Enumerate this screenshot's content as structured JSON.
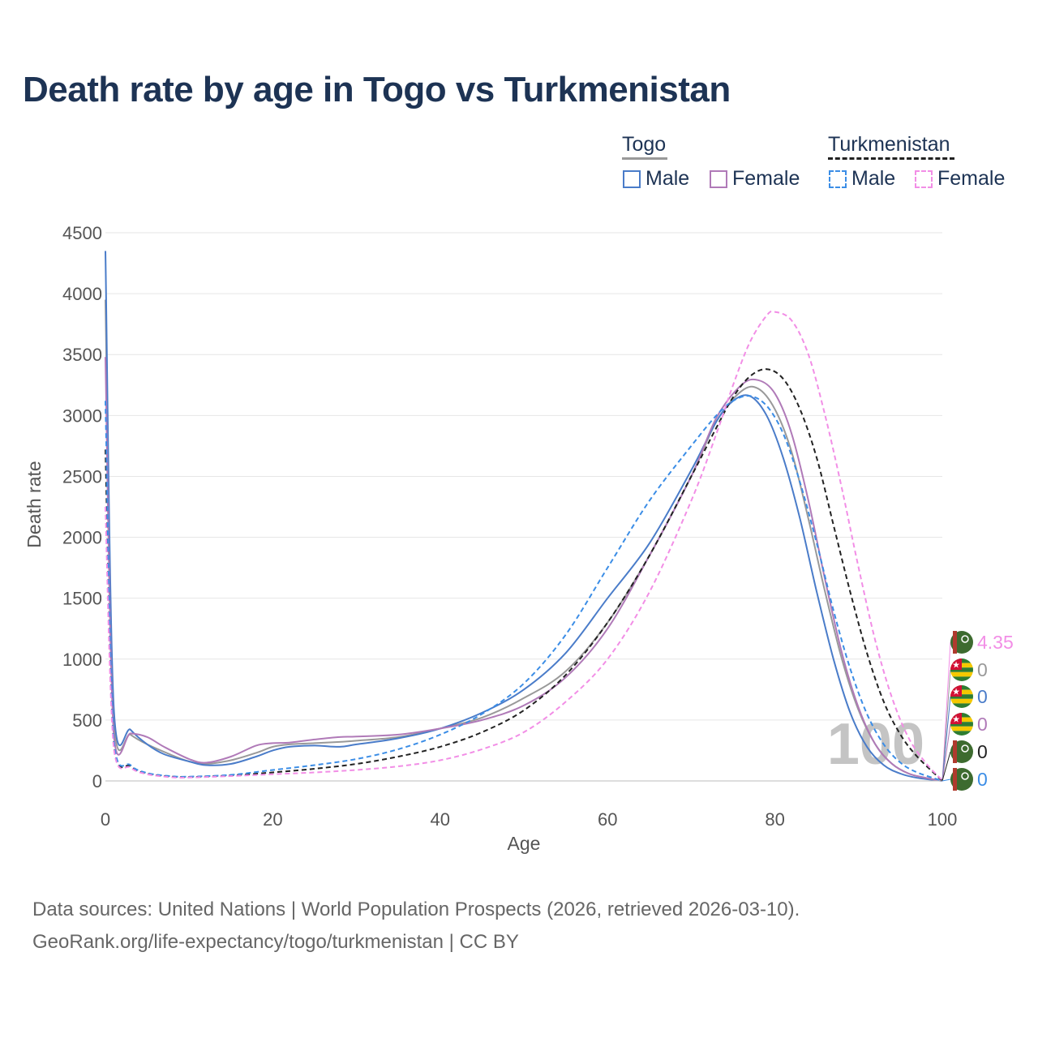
{
  "title": "Death rate by age in Togo vs Turkmenistan",
  "legend": {
    "groups": [
      {
        "name": "Togo",
        "items": [
          "Male",
          "Female"
        ]
      },
      {
        "name": "Turkmenistan",
        "items": [
          "Male",
          "Female"
        ]
      }
    ]
  },
  "footer": {
    "line1": "Data sources: United Nations | World Population Prospects (2026, retrieved 2026-03-10).",
    "line2": "GeoRank.org/life-expectancy/togo/turkmenistan | CC BY"
  },
  "colors": {
    "togo_total": "#999999",
    "togo_male": "#4a7cc9",
    "togo_female": "#b07ab8",
    "tkm_total": "#222222",
    "tkm_male": "#3b8de6",
    "tkm_female": "#f28ee6"
  },
  "chart_data": {
    "type": "line",
    "xlabel": "Age",
    "ylabel": "Death rate",
    "xlim": [
      0,
      100
    ],
    "ylim": [
      0,
      4500
    ],
    "xticks": [
      0,
      20,
      40,
      60,
      80,
      100
    ],
    "yticks": [
      0,
      500,
      1000,
      1500,
      2000,
      2500,
      3000,
      3500,
      4000,
      4500
    ],
    "current_age_label": "100",
    "series": [
      {
        "name": "Togo (total)",
        "country": "Togo",
        "sex": "Total",
        "dash": false,
        "color": "#999999",
        "end_label": "0",
        "points": [
          [
            0,
            3950
          ],
          [
            1,
            500
          ],
          [
            3,
            380
          ],
          [
            5,
            300
          ],
          [
            8,
            210
          ],
          [
            10,
            160
          ],
          [
            12,
            140
          ],
          [
            15,
            170
          ],
          [
            18,
            230
          ],
          [
            20,
            280
          ],
          [
            22,
            300
          ],
          [
            25,
            310
          ],
          [
            28,
            320
          ],
          [
            30,
            330
          ],
          [
            35,
            360
          ],
          [
            40,
            430
          ],
          [
            45,
            520
          ],
          [
            50,
            680
          ],
          [
            55,
            900
          ],
          [
            60,
            1300
          ],
          [
            65,
            1850
          ],
          [
            70,
            2500
          ],
          [
            73,
            2950
          ],
          [
            76,
            3200
          ],
          [
            78,
            3220
          ],
          [
            80,
            3050
          ],
          [
            82,
            2700
          ],
          [
            84,
            2150
          ],
          [
            86,
            1550
          ],
          [
            88,
            1000
          ],
          [
            90,
            580
          ],
          [
            92,
            300
          ],
          [
            94,
            140
          ],
          [
            96,
            60
          ],
          [
            98,
            25
          ],
          [
            100,
            0
          ]
        ]
      },
      {
        "name": "Togo Male",
        "country": "Togo",
        "sex": "Male",
        "dash": false,
        "color": "#4a7cc9",
        "end_label": "0",
        "points": [
          [
            0,
            4350
          ],
          [
            1,
            600
          ],
          [
            3,
            420
          ],
          [
            5,
            300
          ],
          [
            7,
            220
          ],
          [
            10,
            160
          ],
          [
            12,
            130
          ],
          [
            15,
            140
          ],
          [
            18,
            200
          ],
          [
            20,
            250
          ],
          [
            22,
            280
          ],
          [
            25,
            290
          ],
          [
            28,
            280
          ],
          [
            30,
            300
          ],
          [
            35,
            350
          ],
          [
            40,
            430
          ],
          [
            45,
            560
          ],
          [
            50,
            750
          ],
          [
            55,
            1050
          ],
          [
            60,
            1500
          ],
          [
            65,
            1950
          ],
          [
            70,
            2550
          ],
          [
            73,
            2950
          ],
          [
            75,
            3120
          ],
          [
            77,
            3160
          ],
          [
            79,
            3000
          ],
          [
            81,
            2650
          ],
          [
            83,
            2150
          ],
          [
            85,
            1550
          ],
          [
            87,
            1000
          ],
          [
            89,
            560
          ],
          [
            91,
            280
          ],
          [
            93,
            130
          ],
          [
            95,
            60
          ],
          [
            97,
            25
          ],
          [
            100,
            0
          ]
        ]
      },
      {
        "name": "Togo Female",
        "country": "Togo",
        "sex": "Female",
        "dash": false,
        "color": "#b07ab8",
        "end_label": "0",
        "points": [
          [
            0,
            3480
          ],
          [
            1,
            380
          ],
          [
            3,
            390
          ],
          [
            5,
            360
          ],
          [
            7,
            280
          ],
          [
            10,
            180
          ],
          [
            12,
            150
          ],
          [
            15,
            200
          ],
          [
            18,
            290
          ],
          [
            20,
            310
          ],
          [
            22,
            315
          ],
          [
            25,
            340
          ],
          [
            28,
            360
          ],
          [
            30,
            365
          ],
          [
            35,
            380
          ],
          [
            40,
            430
          ],
          [
            45,
            500
          ],
          [
            50,
            620
          ],
          [
            55,
            850
          ],
          [
            60,
            1250
          ],
          [
            65,
            1850
          ],
          [
            70,
            2500
          ],
          [
            73,
            2980
          ],
          [
            76,
            3250
          ],
          [
            78,
            3290
          ],
          [
            80,
            3180
          ],
          [
            82,
            2850
          ],
          [
            84,
            2300
          ],
          [
            86,
            1650
          ],
          [
            88,
            1050
          ],
          [
            90,
            600
          ],
          [
            92,
            300
          ],
          [
            94,
            140
          ],
          [
            96,
            60
          ],
          [
            98,
            25
          ],
          [
            100,
            0
          ]
        ]
      },
      {
        "name": "Turkmenistan (total)",
        "country": "Turkmenistan",
        "sex": "Total",
        "dash": true,
        "color": "#222222",
        "end_label": "0",
        "points": [
          [
            0,
            2720
          ],
          [
            1,
            300
          ],
          [
            3,
            120
          ],
          [
            5,
            60
          ],
          [
            8,
            35
          ],
          [
            10,
            32
          ],
          [
            15,
            45
          ],
          [
            20,
            70
          ],
          [
            25,
            100
          ],
          [
            30,
            140
          ],
          [
            35,
            200
          ],
          [
            40,
            280
          ],
          [
            45,
            400
          ],
          [
            50,
            580
          ],
          [
            55,
            870
          ],
          [
            60,
            1300
          ],
          [
            65,
            1850
          ],
          [
            70,
            2500
          ],
          [
            73,
            2900
          ],
          [
            75,
            3150
          ],
          [
            77,
            3320
          ],
          [
            79,
            3380
          ],
          [
            81,
            3300
          ],
          [
            83,
            3050
          ],
          [
            85,
            2650
          ],
          [
            87,
            2100
          ],
          [
            89,
            1550
          ],
          [
            91,
            1050
          ],
          [
            93,
            650
          ],
          [
            95,
            380
          ],
          [
            97,
            200
          ],
          [
            100,
            0
          ]
        ]
      },
      {
        "name": "Turkmenistan Male",
        "country": "Turkmenistan",
        "sex": "Male",
        "dash": true,
        "color": "#3b8de6",
        "end_label": "0",
        "points": [
          [
            0,
            3120
          ],
          [
            1,
            330
          ],
          [
            3,
            130
          ],
          [
            5,
            65
          ],
          [
            8,
            38
          ],
          [
            10,
            35
          ],
          [
            15,
            50
          ],
          [
            20,
            90
          ],
          [
            25,
            130
          ],
          [
            30,
            180
          ],
          [
            35,
            260
          ],
          [
            40,
            380
          ],
          [
            45,
            550
          ],
          [
            50,
            800
          ],
          [
            55,
            1200
          ],
          [
            60,
            1750
          ],
          [
            65,
            2300
          ],
          [
            70,
            2750
          ],
          [
            73,
            3000
          ],
          [
            75,
            3120
          ],
          [
            77,
            3160
          ],
          [
            79,
            3080
          ],
          [
            81,
            2850
          ],
          [
            83,
            2450
          ],
          [
            85,
            1950
          ],
          [
            87,
            1400
          ],
          [
            89,
            920
          ],
          [
            91,
            550
          ],
          [
            93,
            300
          ],
          [
            95,
            150
          ],
          [
            97,
            70
          ],
          [
            100,
            0
          ]
        ]
      },
      {
        "name": "Turkmenistan Female",
        "country": "Turkmenistan",
        "sex": "Female",
        "dash": true,
        "color": "#f28ee6",
        "end_label": "4.35",
        "points": [
          [
            0,
            2250
          ],
          [
            1,
            270
          ],
          [
            3,
            110
          ],
          [
            5,
            55
          ],
          [
            8,
            30
          ],
          [
            10,
            28
          ],
          [
            15,
            40
          ],
          [
            20,
            55
          ],
          [
            25,
            70
          ],
          [
            30,
            90
          ],
          [
            35,
            120
          ],
          [
            40,
            170
          ],
          [
            45,
            260
          ],
          [
            50,
            400
          ],
          [
            55,
            650
          ],
          [
            60,
            1000
          ],
          [
            65,
            1550
          ],
          [
            70,
            2300
          ],
          [
            73,
            2850
          ],
          [
            75,
            3250
          ],
          [
            77,
            3600
          ],
          [
            79,
            3820
          ],
          [
            80,
            3850
          ],
          [
            82,
            3780
          ],
          [
            84,
            3500
          ],
          [
            86,
            3000
          ],
          [
            88,
            2400
          ],
          [
            90,
            1750
          ],
          [
            92,
            1150
          ],
          [
            94,
            680
          ],
          [
            96,
            350
          ],
          [
            98,
            150
          ],
          [
            100,
            4.35
          ]
        ]
      }
    ]
  }
}
